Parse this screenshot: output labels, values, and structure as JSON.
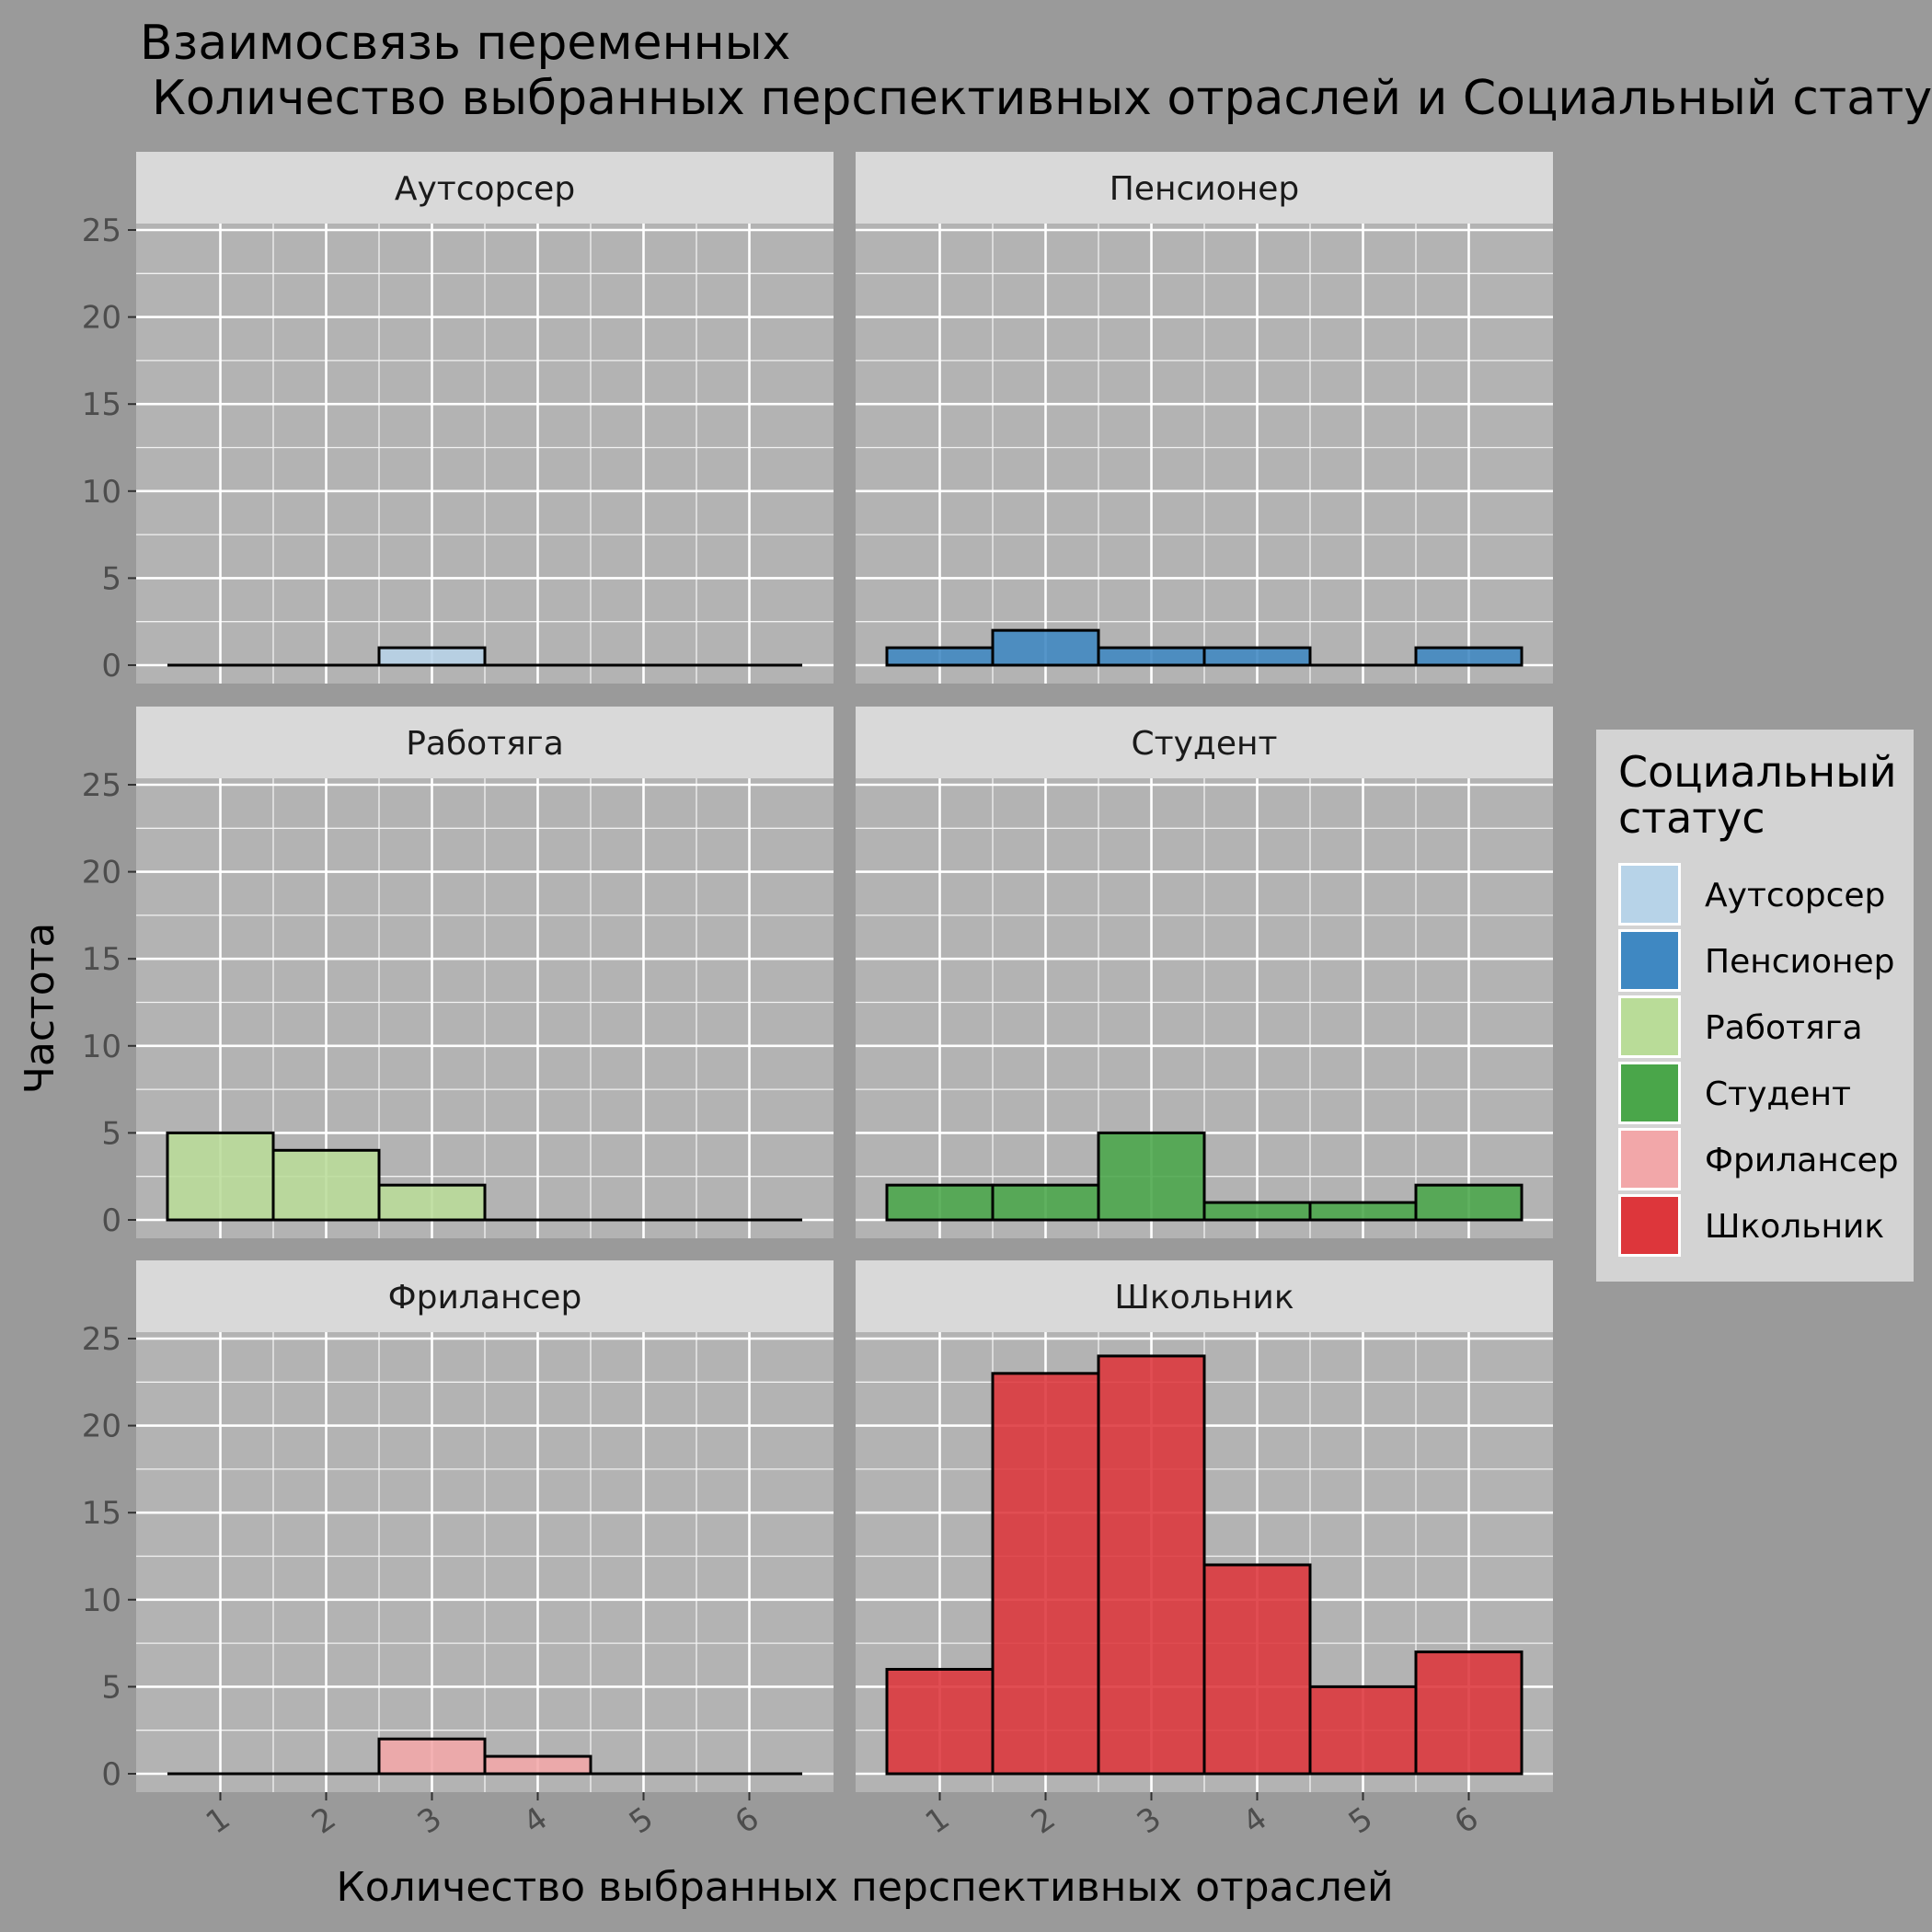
{
  "chart_data": {
    "type": "bar",
    "title": "Взаимосвязь переменных",
    "subtitle": "Количество выбранных перспективных отраслей и Социальный статус",
    "xlabel": "Количество выбранных перспективных отраслей",
    "ylabel": "Частота",
    "x": [
      1,
      2,
      3,
      4,
      5,
      6
    ],
    "x_tick_labels": [
      "1",
      "2",
      "3",
      "4",
      "5",
      "6"
    ],
    "xlim": [
      0.5,
      6.5
    ],
    "ylim": [
      0,
      25
    ],
    "y_ticks": [
      0,
      5,
      10,
      15,
      20,
      25
    ],
    "y_tick_labels": [
      "0",
      "5",
      "10",
      "15",
      "20",
      "25"
    ],
    "grid": true,
    "facet_columns": 2,
    "legend": {
      "title": "Социальный статус",
      "title_lines": [
        "Социальный",
        "статус"
      ],
      "position": "right"
    },
    "series": [
      {
        "name": "Аутсорсер",
        "color": "#b7d3e8",
        "values": [
          0,
          0,
          1,
          0,
          0,
          0
        ]
      },
      {
        "name": "Пенсионер",
        "color": "#3f88c2",
        "values": [
          1,
          2,
          1,
          1,
          0,
          1
        ]
      },
      {
        "name": "Работяга",
        "color": "#b9dc98",
        "values": [
          5,
          4,
          2,
          0,
          0,
          0
        ]
      },
      {
        "name": "Студент",
        "color": "#4aa64a",
        "values": [
          2,
          2,
          5,
          1,
          1,
          2
        ]
      },
      {
        "name": "Фрилансер",
        "color": "#f2a7a9",
        "values": [
          0,
          0,
          2,
          1,
          0,
          0
        ]
      },
      {
        "name": "Школьник",
        "color": "#dd363b",
        "values": [
          6,
          23,
          24,
          12,
          5,
          7
        ]
      }
    ]
  }
}
